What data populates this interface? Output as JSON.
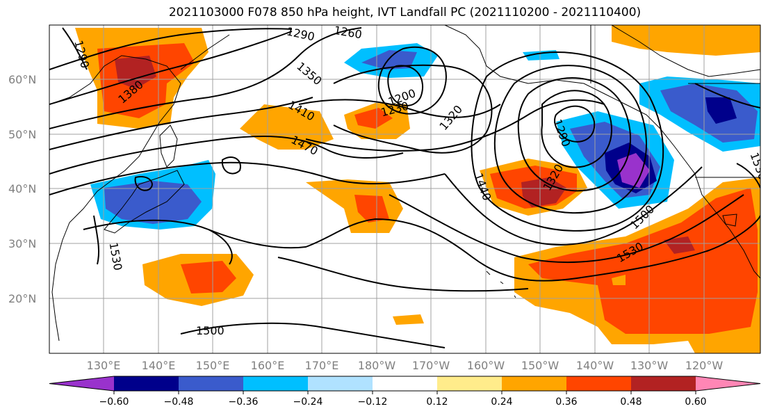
{
  "title": "2021103000 F078 850 hPa height, IVT Landfall PC (2021110200 - 2021110400)",
  "lat_labels": [
    "60°N",
    "50°N",
    "40°N",
    "30°N",
    "20°N"
  ],
  "lon_labels": [
    "130°E",
    "140°E",
    "150°E",
    "160°E",
    "170°E",
    "180°W",
    "170°W",
    "160°W",
    "150°W",
    "140°W",
    "130°W",
    "120°W"
  ],
  "contour_labels": [
    "1290",
    "1260",
    "1290",
    "1380",
    "1350",
    "1410",
    "1470",
    "1200",
    "1230",
    "1320",
    "1290",
    "1440",
    "1320",
    "1500",
    "1530",
    "1530",
    "1530",
    "1500",
    "1290"
  ],
  "colorbar": {
    "ticks": [
      "−0.60",
      "−0.48",
      "−0.36",
      "−0.24",
      "−0.12",
      "0.12",
      "0.24",
      "0.36",
      "0.48",
      "0.60"
    ],
    "colors": [
      "#9932CC",
      "#00008B",
      "#3A5BCC",
      "#00BFFF",
      "#B0E2FF",
      "#FFFFFF",
      "#FFEC8B",
      "#FFA500",
      "#FF4500",
      "#B22222",
      "#FF86B5"
    ]
  }
}
